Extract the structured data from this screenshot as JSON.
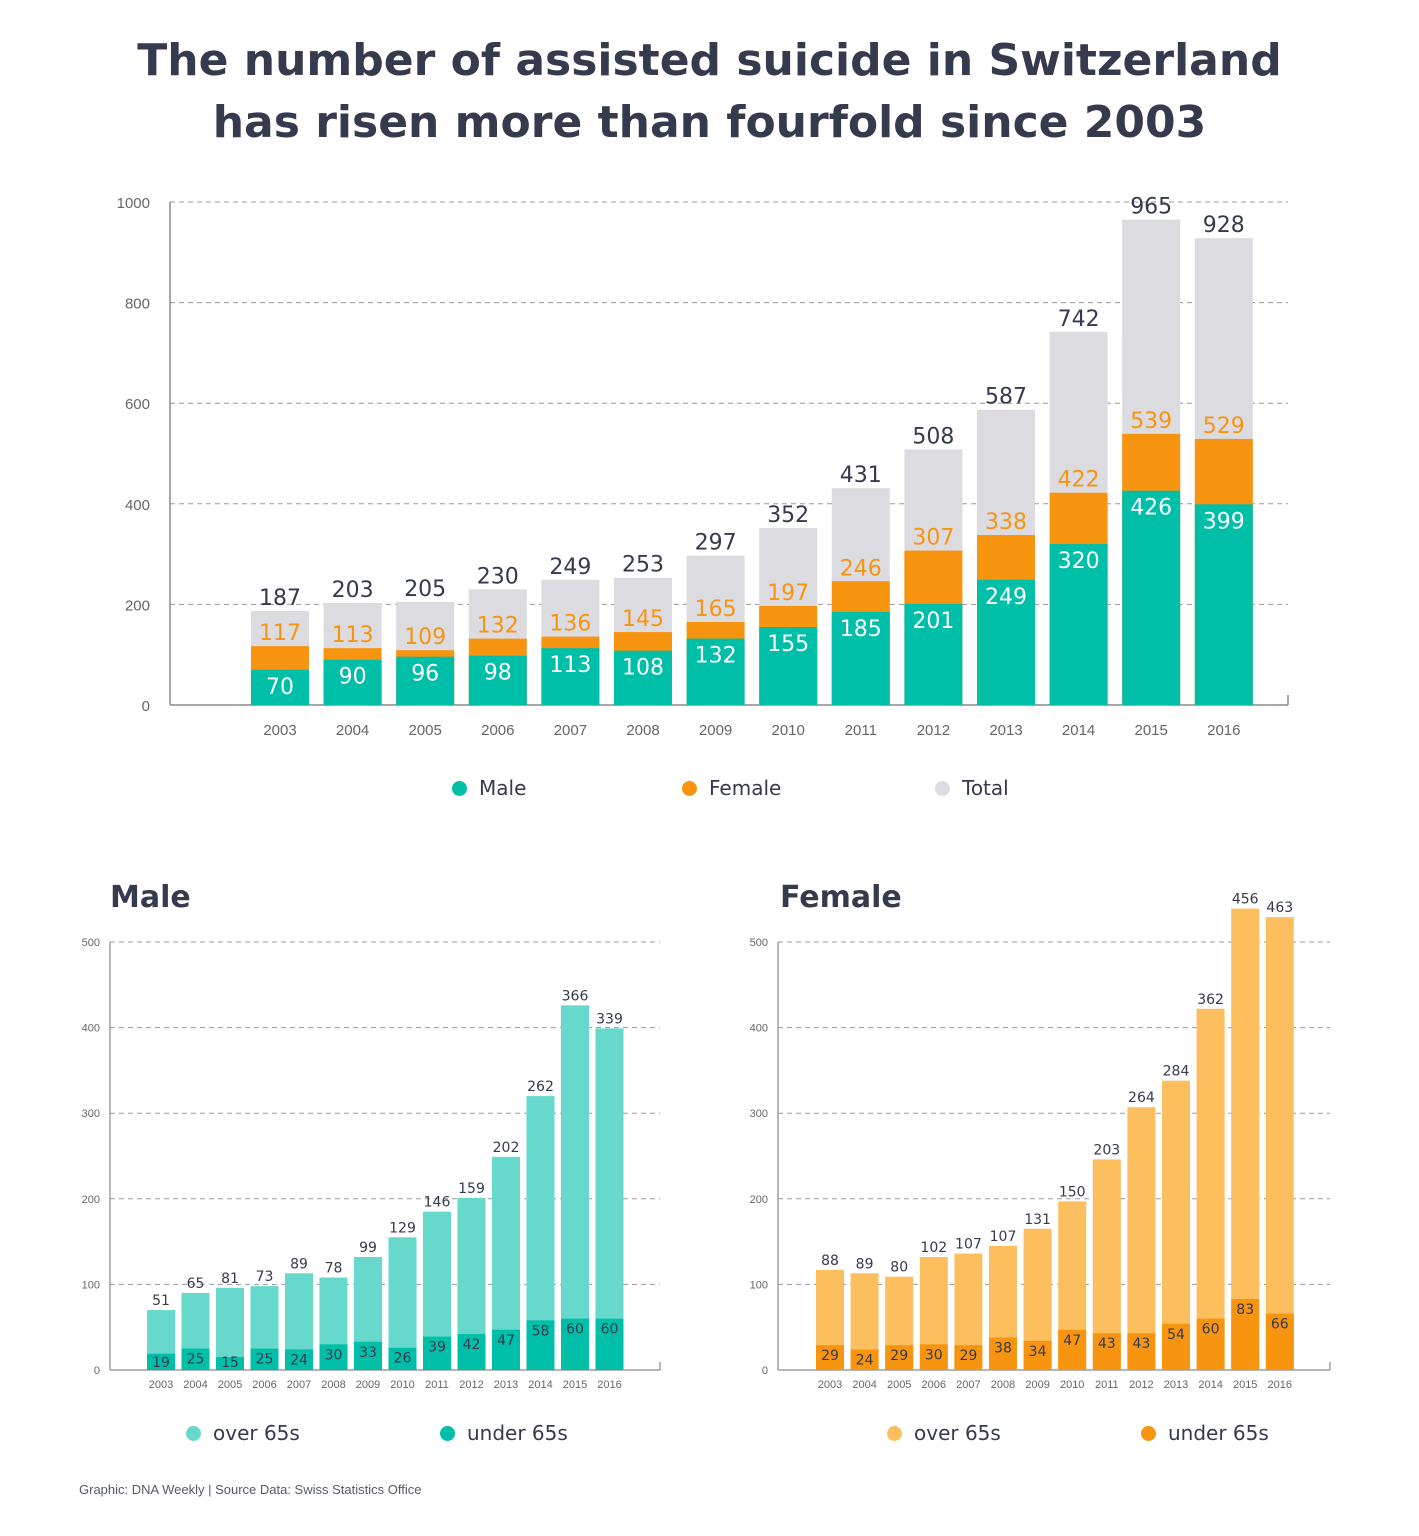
{
  "title": {
    "line1": "The number of assisted suicide in Switzerland",
    "line2": "has risen more than fourfold since 2003"
  },
  "colors": {
    "male": "#00bfa8",
    "female": "#f79410",
    "total": "#dcdbe0",
    "male_over65": "#66d9cc",
    "male_under65": "#00bfa8",
    "female_over65": "#fdbf5e",
    "female_under65": "#f79410",
    "text_dark": "#353a4d",
    "axis_text": "#666666"
  },
  "legends": {
    "top": [
      {
        "label": "Male",
        "color": "#00bfa8"
      },
      {
        "label": "Female",
        "color": "#f79410"
      },
      {
        "label": "Total",
        "color": "#dcdbe0"
      }
    ],
    "male": [
      {
        "label": "over 65s",
        "color": "#66d9cc"
      },
      {
        "label": "under 65s",
        "color": "#00bfa8"
      }
    ],
    "female": [
      {
        "label": "over 65s",
        "color": "#fdbf5e"
      },
      {
        "label": "under 65s",
        "color": "#f79410"
      }
    ]
  },
  "footer": "Graphic: DNA Weekly | Source Data: Swiss Statistics Office",
  "chart_data": [
    {
      "id": "overall",
      "type": "bar",
      "title": "The number of assisted suicide in Switzerland has risen more than fourfold since 2003",
      "categories": [
        "2003",
        "2004",
        "2005",
        "2006",
        "2007",
        "2008",
        "2009",
        "2010",
        "2011",
        "2012",
        "2013",
        "2014",
        "2015",
        "2016"
      ],
      "series": [
        {
          "name": "Male",
          "values": [
            70,
            90,
            96,
            98,
            113,
            108,
            132,
            155,
            185,
            201,
            249,
            320,
            426,
            399
          ]
        },
        {
          "name": "Female",
          "values": [
            117,
            113,
            109,
            132,
            136,
            145,
            165,
            197,
            246,
            307,
            338,
            422,
            539,
            529
          ]
        },
        {
          "name": "Total",
          "values": [
            187,
            203,
            205,
            230,
            249,
            253,
            297,
            352,
            431,
            508,
            587,
            742,
            965,
            928
          ]
        }
      ],
      "yticks": [
        0,
        200,
        400,
        600,
        800,
        1000
      ],
      "ylim": [
        0,
        1000
      ],
      "legend": "bottom",
      "grid": true
    },
    {
      "id": "male",
      "type": "bar",
      "title": "Male",
      "categories": [
        "2003",
        "2004",
        "2005",
        "2006",
        "2007",
        "2008",
        "2009",
        "2010",
        "2011",
        "2012",
        "2013",
        "2014",
        "2015",
        "2016"
      ],
      "series": [
        {
          "name": "over 65s",
          "values": [
            51,
            65,
            81,
            73,
            89,
            78,
            99,
            129,
            146,
            159,
            202,
            262,
            366,
            339
          ]
        },
        {
          "name": "under 65s",
          "values": [
            19,
            25,
            15,
            25,
            24,
            30,
            33,
            26,
            39,
            42,
            47,
            58,
            60,
            60
          ]
        }
      ],
      "yticks": [
        0,
        100,
        200,
        300,
        400,
        500
      ],
      "ylim": [
        0,
        500
      ],
      "legend": "bottom",
      "grid": true
    },
    {
      "id": "female",
      "type": "bar",
      "title": "Female",
      "categories": [
        "2003",
        "2004",
        "2005",
        "2006",
        "2007",
        "2008",
        "2009",
        "2010",
        "2011",
        "2012",
        "2013",
        "2014",
        "2015",
        "2016"
      ],
      "series": [
        {
          "name": "over 65s",
          "values": [
            88,
            89,
            80,
            102,
            107,
            107,
            131,
            150,
            203,
            264,
            284,
            362,
            456,
            463
          ]
        },
        {
          "name": "under 65s",
          "values": [
            29,
            24,
            29,
            30,
            29,
            38,
            34,
            47,
            43,
            43,
            54,
            60,
            83,
            66
          ]
        }
      ],
      "yticks": [
        0,
        100,
        200,
        300,
        400,
        500
      ],
      "ylim": [
        0,
        500
      ],
      "legend": "bottom",
      "grid": true
    }
  ]
}
